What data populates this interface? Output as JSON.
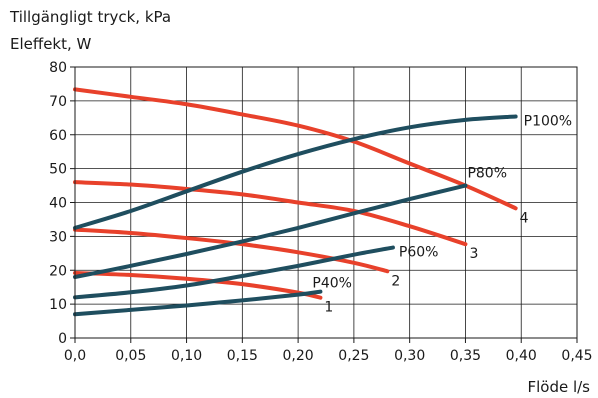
{
  "chart_data": {
    "type": "line",
    "title": "",
    "ylabel": [
      "Tillgängligt tryck, kPa",
      "Eleffekt, W"
    ],
    "xlabel": "Flöde l/s",
    "xlim": [
      0,
      0.45
    ],
    "ylim": [
      0,
      80
    ],
    "x_ticks": [
      0,
      0.05,
      0.1,
      0.15,
      0.2,
      0.25,
      0.3,
      0.35,
      0.4,
      0.45
    ],
    "x_tick_labels": [
      "0,0",
      "0,05",
      "0,10",
      "0,15",
      "0,20",
      "0,25",
      "0,30",
      "0,35",
      "0,40",
      "0,45"
    ],
    "y_ticks": [
      0,
      10,
      20,
      30,
      40,
      50,
      60,
      70,
      80
    ],
    "y_tick_labels": [
      "0",
      "10",
      "20",
      "30",
      "40",
      "50",
      "60",
      "70",
      "80"
    ],
    "grid": true,
    "colors": {
      "pressure": "#e8412b",
      "power": "#1f4e5f"
    },
    "series": [
      {
        "name": "1",
        "group": "pressure",
        "x": [
          0,
          0.05,
          0.1,
          0.15,
          0.2,
          0.22
        ],
        "y": [
          19.2,
          18.6,
          17.5,
          15.9,
          13.4,
          11.9
        ]
      },
      {
        "name": "2",
        "group": "pressure",
        "x": [
          0,
          0.05,
          0.1,
          0.15,
          0.2,
          0.25,
          0.28
        ],
        "y": [
          32,
          31,
          29.5,
          27.7,
          25.3,
          22.2,
          19.7
        ]
      },
      {
        "name": "3",
        "group": "pressure",
        "x": [
          0,
          0.05,
          0.1,
          0.15,
          0.2,
          0.25,
          0.3,
          0.35
        ],
        "y": [
          46,
          45.3,
          44,
          42.4,
          40,
          37.5,
          33,
          27.7
        ]
      },
      {
        "name": "4",
        "group": "pressure",
        "x": [
          0,
          0.05,
          0.1,
          0.15,
          0.2,
          0.25,
          0.3,
          0.35,
          0.395
        ],
        "y": [
          73.4,
          71.2,
          69,
          66,
          62.7,
          58,
          51.5,
          45,
          38.3
        ]
      },
      {
        "name": "P40%",
        "group": "power",
        "x": [
          0,
          0.05,
          0.1,
          0.15,
          0.2,
          0.22
        ],
        "y": [
          7,
          8.3,
          9.6,
          11.1,
          12.8,
          13.7
        ]
      },
      {
        "name": "P60%",
        "group": "power",
        "x": [
          0,
          0.05,
          0.1,
          0.15,
          0.2,
          0.25,
          0.285
        ],
        "y": [
          12,
          13.5,
          15.5,
          18.3,
          21.3,
          24.6,
          26.7
        ]
      },
      {
        "name": "P80%",
        "group": "power",
        "x": [
          0,
          0.05,
          0.1,
          0.15,
          0.2,
          0.25,
          0.3,
          0.35
        ],
        "y": [
          18,
          21.3,
          24.8,
          28.5,
          32.5,
          36.8,
          41,
          45
        ]
      },
      {
        "name": "P100%",
        "group": "power",
        "x": [
          0,
          0.05,
          0.1,
          0.15,
          0.2,
          0.25,
          0.3,
          0.35,
          0.395
        ],
        "y": [
          32.5,
          37.5,
          43.3,
          49.1,
          54.3,
          58.7,
          62.2,
          64.4,
          65.4
        ]
      }
    ]
  }
}
